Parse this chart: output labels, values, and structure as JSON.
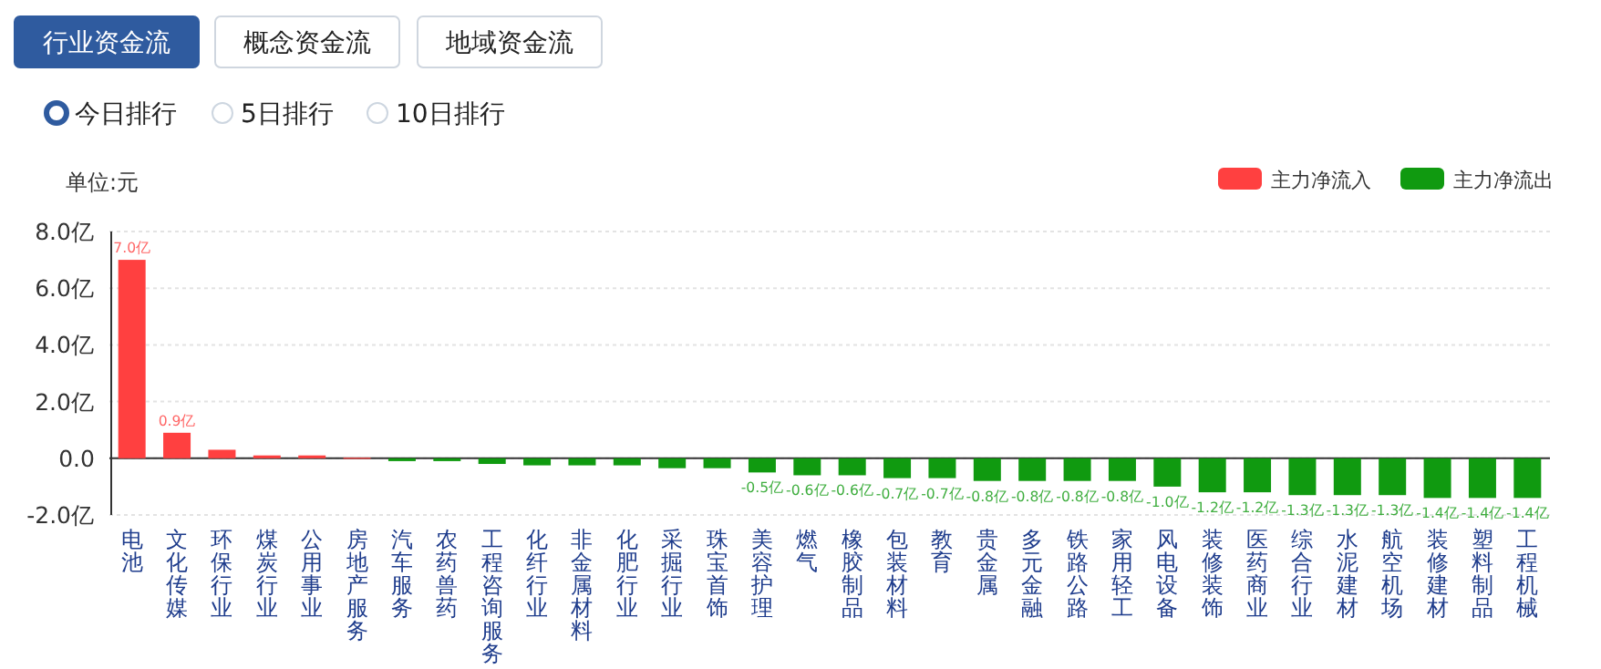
{
  "chart_data": {
    "type": "bar",
    "ylabel": "单位:元",
    "annotations": [
      "行业资金流",
      "概念资金流",
      "地域资金流",
      "今日排行",
      "5日排行",
      "10日排行"
    ],
    "categories": [
      "电池",
      "文化传媒",
      "环保行业",
      "煤炭行业",
      "公用事业",
      "房地产服务",
      "汽车服务",
      "农药兽药",
      "工程咨询服务",
      "化纤行业",
      "非金属材料",
      "化肥行业",
      "采掘行业",
      "珠宝首饰",
      "美容护理",
      "燃气",
      "橡胶制品",
      "包装材料",
      "教育",
      "贵金属",
      "多元金融",
      "铁路公路",
      "家用轻工",
      "风电设备",
      "装修装饰",
      "医药商业",
      "综合行业",
      "水泥建材",
      "航空机场",
      "装修建材",
      "塑料制品",
      "工程机械"
    ],
    "series": [
      {
        "name": "主力净流入",
        "color": "#ff4040",
        "values": [
          7.0,
          0.9,
          0.3,
          0.1,
          0.1,
          0.02,
          null,
          null,
          null,
          null,
          null,
          null,
          null,
          null,
          null,
          null,
          null,
          null,
          null,
          null,
          null,
          null,
          null,
          null,
          null,
          null,
          null,
          null,
          null,
          null,
          null,
          null
        ],
        "value_labels": [
          "7.0亿",
          "0.9亿",
          null,
          null,
          null,
          null,
          null,
          null,
          null,
          null,
          null,
          null,
          null,
          null,
          null,
          null,
          null,
          null,
          null,
          null,
          null,
          null,
          null,
          null,
          null,
          null,
          null,
          null,
          null,
          null,
          null,
          null
        ]
      },
      {
        "name": "主力净流出",
        "color": "#109a10",
        "values": [
          null,
          null,
          null,
          null,
          null,
          null,
          -0.1,
          -0.1,
          -0.2,
          -0.25,
          -0.25,
          -0.25,
          -0.35,
          -0.35,
          -0.5,
          -0.6,
          -0.6,
          -0.7,
          -0.7,
          -0.8,
          -0.8,
          -0.8,
          -0.8,
          -1.0,
          -1.2,
          -1.2,
          -1.3,
          -1.3,
          -1.3,
          -1.4,
          -1.4,
          -1.4
        ],
        "value_labels": [
          null,
          null,
          null,
          null,
          null,
          null,
          null,
          null,
          null,
          null,
          null,
          null,
          null,
          null,
          "-0.5亿",
          "-0.6亿",
          "-0.6亿",
          "-0.7亿",
          "-0.7亿",
          "-0.8亿",
          "-0.8亿",
          "-0.8亿",
          "-0.8亿",
          "-1.0亿",
          "-1.2亿",
          "-1.2亿",
          "-1.3亿",
          "-1.3亿",
          "-1.3亿",
          "-1.4亿",
          "-1.4亿",
          "-1.4亿"
        ]
      }
    ],
    "ylim": [
      -2,
      8
    ],
    "yticks": [
      {
        "value": -2,
        "label": "-2.0亿"
      },
      {
        "value": 0,
        "label": "0.0"
      },
      {
        "value": 2,
        "label": "2.0亿"
      },
      {
        "value": 4,
        "label": "4.0亿"
      },
      {
        "value": 6,
        "label": "6.0亿"
      },
      {
        "value": 8,
        "label": "8.0亿"
      }
    ],
    "grid": "y",
    "legend": "top right"
  }
}
